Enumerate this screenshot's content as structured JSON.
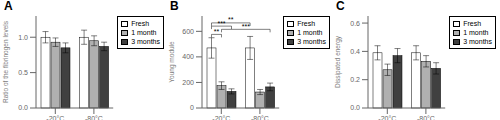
{
  "chart_data": [
    {
      "type": "bar",
      "title": "A",
      "y_label": "Ratio of the fibrinogen levels",
      "categories": [
        "-20°C",
        "-80°C"
      ],
      "series": [
        {
          "name": "Fresh",
          "color": "#ffffff",
          "values": [
            1.0,
            1.0
          ],
          "errors": [
            0.08,
            0.1
          ]
        },
        {
          "name": "1 month",
          "color": "#b0b0b0",
          "values": [
            0.93,
            0.95
          ],
          "errors": [
            0.06,
            0.07
          ]
        },
        {
          "name": "3 months",
          "color": "#404040",
          "values": [
            0.85,
            0.87
          ],
          "errors": [
            0.07,
            0.06
          ]
        }
      ],
      "ylim": [
        0.0,
        1.3
      ],
      "yticks": [
        {
          "value": 0,
          "label": "0.0"
        },
        0.5,
        {
          "value": 1,
          "label": "1.0"
        }
      ],
      "legend": "upper right"
    },
    {
      "type": "bar",
      "title": "B",
      "y_label": "Young module",
      "categories": [
        "-20°C",
        "-80°C"
      ],
      "series": [
        {
          "name": "Fresh",
          "color": "#ffffff",
          "values": [
            470,
            470
          ],
          "errors": [
            80,
            90
          ]
        },
        {
          "name": "1 month",
          "color": "#b0b0b0",
          "values": [
            175,
            125
          ],
          "errors": [
            30,
            20
          ]
        },
        {
          "name": "3 months",
          "color": "#404040",
          "values": [
            130,
            165
          ],
          "errors": [
            20,
            30
          ]
        }
      ],
      "ylim": [
        0,
        720
      ],
      "yticks": [
        0,
        200,
        400,
        600
      ],
      "legend": "upper right",
      "annotations": [
        {
          "text": "**",
          "from": {
            "category": "-20°C",
            "series": "Fresh"
          },
          "to": {
            "category": "-20°C",
            "series": "1 month"
          },
          "y": 576
        },
        {
          "text": "***",
          "from": {
            "category": "-20°C",
            "series": "Fresh"
          },
          "to": {
            "category": "-20°C",
            "series": "3 months"
          },
          "y": 640.8
        },
        {
          "text": "**",
          "from": {
            "category": "-20°C",
            "series": "Fresh"
          },
          "to": {
            "category": "-80°C",
            "series": "Fresh"
          },
          "y": 666
        },
        {
          "text": "***",
          "from": {
            "category": "-20°C",
            "series": "1 month"
          },
          "to": {
            "category": "-80°C",
            "series": "3 months"
          },
          "y": 615.6
        }
      ]
    },
    {
      "type": "bar",
      "title": "C",
      "y_label": "Dissipated energy",
      "categories": [
        "-20°C",
        "-80°C"
      ],
      "series": [
        {
          "name": "Fresh",
          "color": "#ffffff",
          "values": [
            0.39,
            0.39
          ],
          "errors": [
            0.05,
            0.05
          ]
        },
        {
          "name": "1 month",
          "color": "#b0b0b0",
          "values": [
            0.27,
            0.33
          ],
          "errors": [
            0.04,
            0.04
          ]
        },
        {
          "name": "3 months",
          "color": "#404040",
          "values": [
            0.37,
            0.28
          ],
          "errors": [
            0.05,
            0.04
          ]
        }
      ],
      "ylim": [
        0.0,
        0.65
      ],
      "yticks": [
        {
          "value": 0,
          "label": "0.0"
        },
        0.2,
        0.4,
        0.6
      ],
      "legend": "upper right"
    }
  ]
}
